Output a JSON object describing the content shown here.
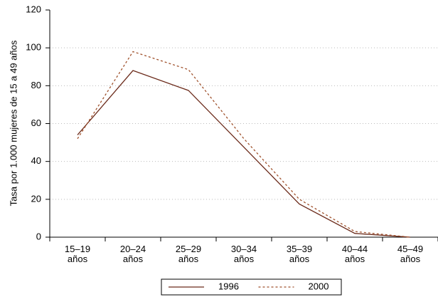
{
  "chart_data": {
    "type": "line",
    "y_label": "Tasa por 1.000 mujeres de 15 a 49 años",
    "categories": [
      "15–19 años",
      "20–24 años",
      "25–29 años",
      "30–34 años",
      "35–39 años",
      "40–44 años",
      "45–49 años"
    ],
    "series": [
      {
        "name": "1996",
        "color": "#6b2a1a",
        "dashed": false,
        "values": [
          54,
          88,
          77.5,
          47.5,
          17.5,
          2,
          0
        ]
      },
      {
        "name": "2000",
        "color": "#a0522d",
        "dashed": true,
        "values": [
          52,
          98,
          88.5,
          52,
          20,
          3,
          0
        ]
      }
    ],
    "ylim": [
      0,
      120
    ],
    "yticks": [
      0,
      20,
      40,
      60,
      80,
      100,
      120
    ],
    "grid": true
  }
}
